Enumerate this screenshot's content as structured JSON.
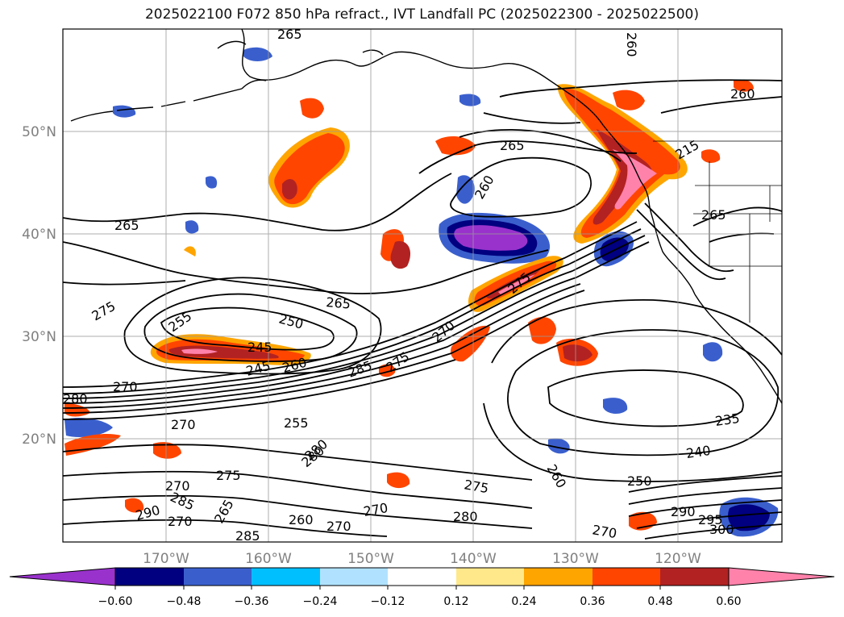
{
  "title": "2025022100 F072 850 hPa refract., IVT Landfall PC (2025022300 - 2025022500)",
  "map": {
    "lat_labels": [
      "50°N",
      "40°N",
      "30°N",
      "20°N"
    ],
    "lon_labels": [
      "170°W",
      "160°W",
      "150°W",
      "140°W",
      "130°W",
      "120°W"
    ],
    "contour_labels": [
      "265",
      "260",
      "265",
      "260",
      "265",
      "275",
      "255",
      "265",
      "250",
      "245",
      "245",
      "260",
      "285",
      "275",
      "270",
      "275",
      "270",
      "280",
      "270",
      "255",
      "280",
      "275",
      "270",
      "270",
      "290",
      "285",
      "265",
      "260",
      "270",
      "285",
      "280",
      "270",
      "260",
      "275",
      "280",
      "270",
      "295",
      "290",
      "300",
      "250",
      "240",
      "235",
      "215",
      "260",
      "265"
    ],
    "colors": {
      "coast": "#000000",
      "grid": "#999999",
      "contour": "#000000",
      "label_gray": "#808080"
    }
  },
  "colorbar": {
    "ticks": [
      "−0.60",
      "−0.48",
      "−0.36",
      "−0.24",
      "−0.12",
      "0.12",
      "0.24",
      "0.36",
      "0.48",
      "0.60"
    ],
    "colors": [
      "#9932cc",
      "#000080",
      "#3a5fcd",
      "#00bfff",
      "#b0e2ff",
      "#ffffff",
      "#ffe88a",
      "#ffa500",
      "#ff4500",
      "#b22222",
      "#ff82ab"
    ]
  }
}
